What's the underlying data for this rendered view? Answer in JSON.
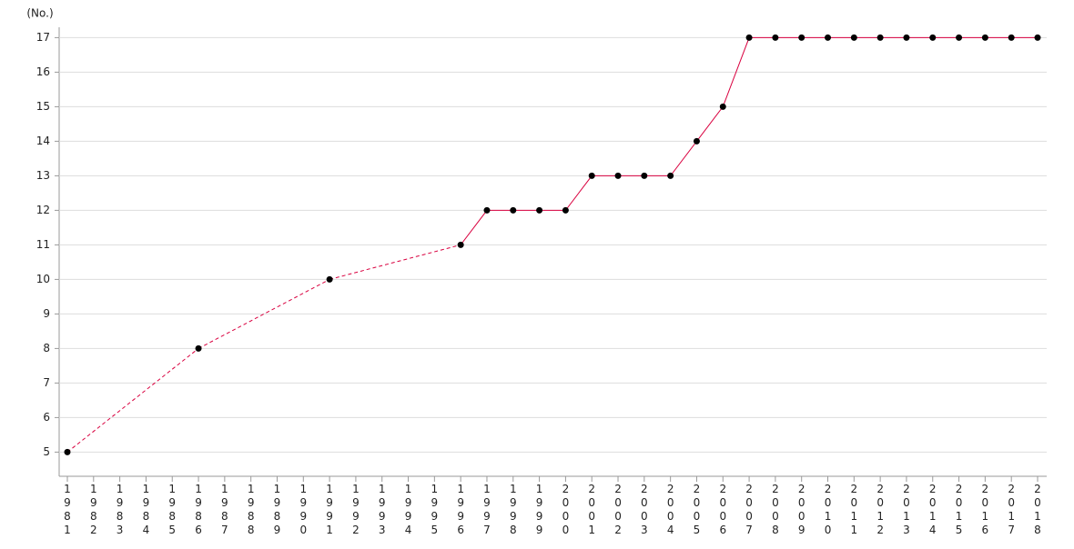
{
  "chart_data": {
    "type": "line",
    "y_label": "(No.)",
    "categories": [
      "1981",
      "1982",
      "1983",
      "1984",
      "1985",
      "1986",
      "1987",
      "1988",
      "1989",
      "1990",
      "1991",
      "1992",
      "1993",
      "1994",
      "1995",
      "1996",
      "1997",
      "1998",
      "1999",
      "2000",
      "2001",
      "2002",
      "2003",
      "2004",
      "2005",
      "2006",
      "2007",
      "2008",
      "2009",
      "2010",
      "2011",
      "2012",
      "2013",
      "2014",
      "2015",
      "2016",
      "2017",
      "2018"
    ],
    "series": [
      {
        "color": "#d9003f",
        "marker_color": "#000000",
        "values": [
          5,
          null,
          null,
          null,
          null,
          8,
          null,
          null,
          null,
          null,
          10,
          null,
          null,
          null,
          null,
          11,
          12,
          12,
          12,
          12,
          13,
          13,
          13,
          13,
          14,
          15,
          17,
          17,
          17,
          17,
          17,
          17,
          17,
          17,
          17,
          17,
          17,
          17
        ]
      }
    ],
    "ylim": [
      4.3,
      17.3
    ],
    "yticks": [
      5,
      6,
      7,
      8,
      9,
      10,
      11,
      12,
      13,
      14,
      15,
      16,
      17
    ],
    "grid": true
  }
}
